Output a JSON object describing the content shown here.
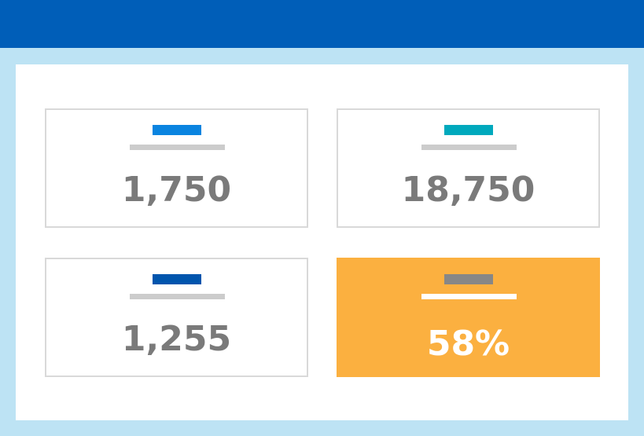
{
  "cards": [
    {
      "value": "1,750"
    },
    {
      "value": "18,750"
    },
    {
      "value": "1,255"
    },
    {
      "value": "58%"
    }
  ]
}
